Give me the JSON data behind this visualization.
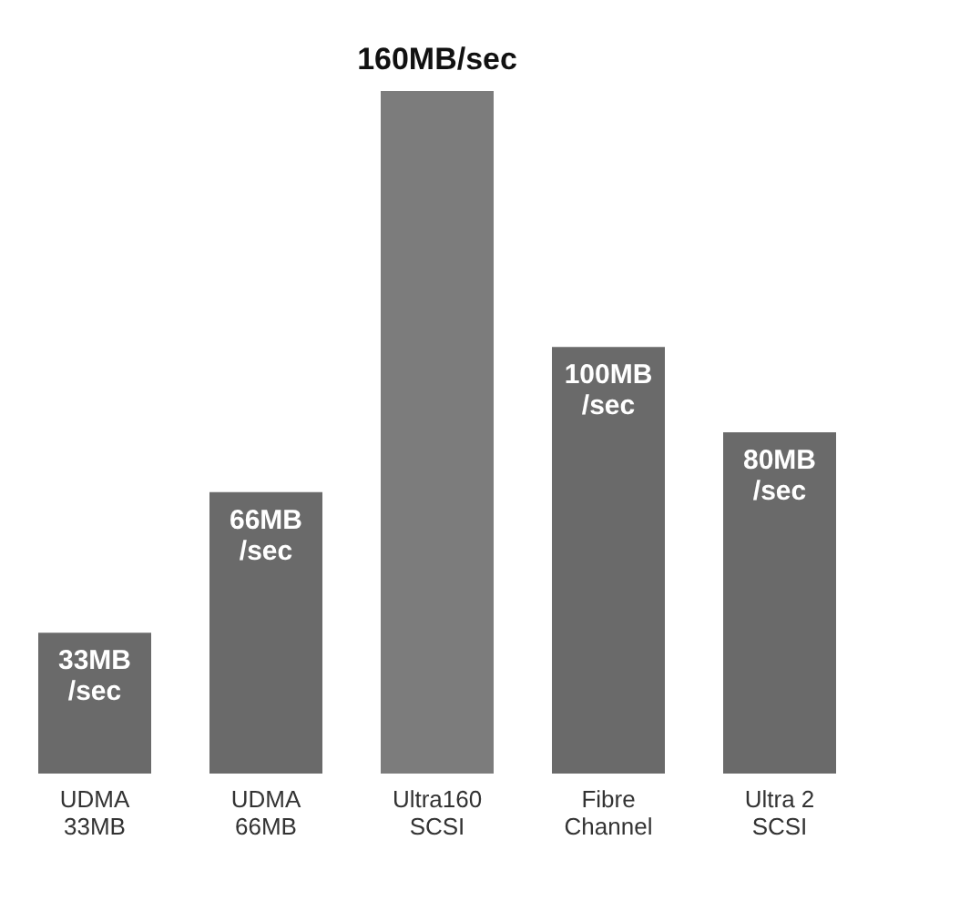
{
  "chart_data": {
    "type": "bar",
    "categories": [
      "UDMA\n33MB",
      "UDMA\n66MB",
      "Ultra160\nSCSI",
      "Fibre\nChannel",
      "Ultra 2\nSCSI"
    ],
    "values": [
      33,
      66,
      160,
      100,
      80
    ],
    "colors": [
      "#6a6a6a",
      "#6a6a6a",
      "#7c7c7c",
      "#6a6a6a",
      "#6a6a6a"
    ],
    "value_labels": [
      "33MB\n/sec",
      "66MB\n/sec",
      "160MB/sec",
      "100MB\n/sec",
      "80MB\n/sec"
    ],
    "grid": false
  }
}
